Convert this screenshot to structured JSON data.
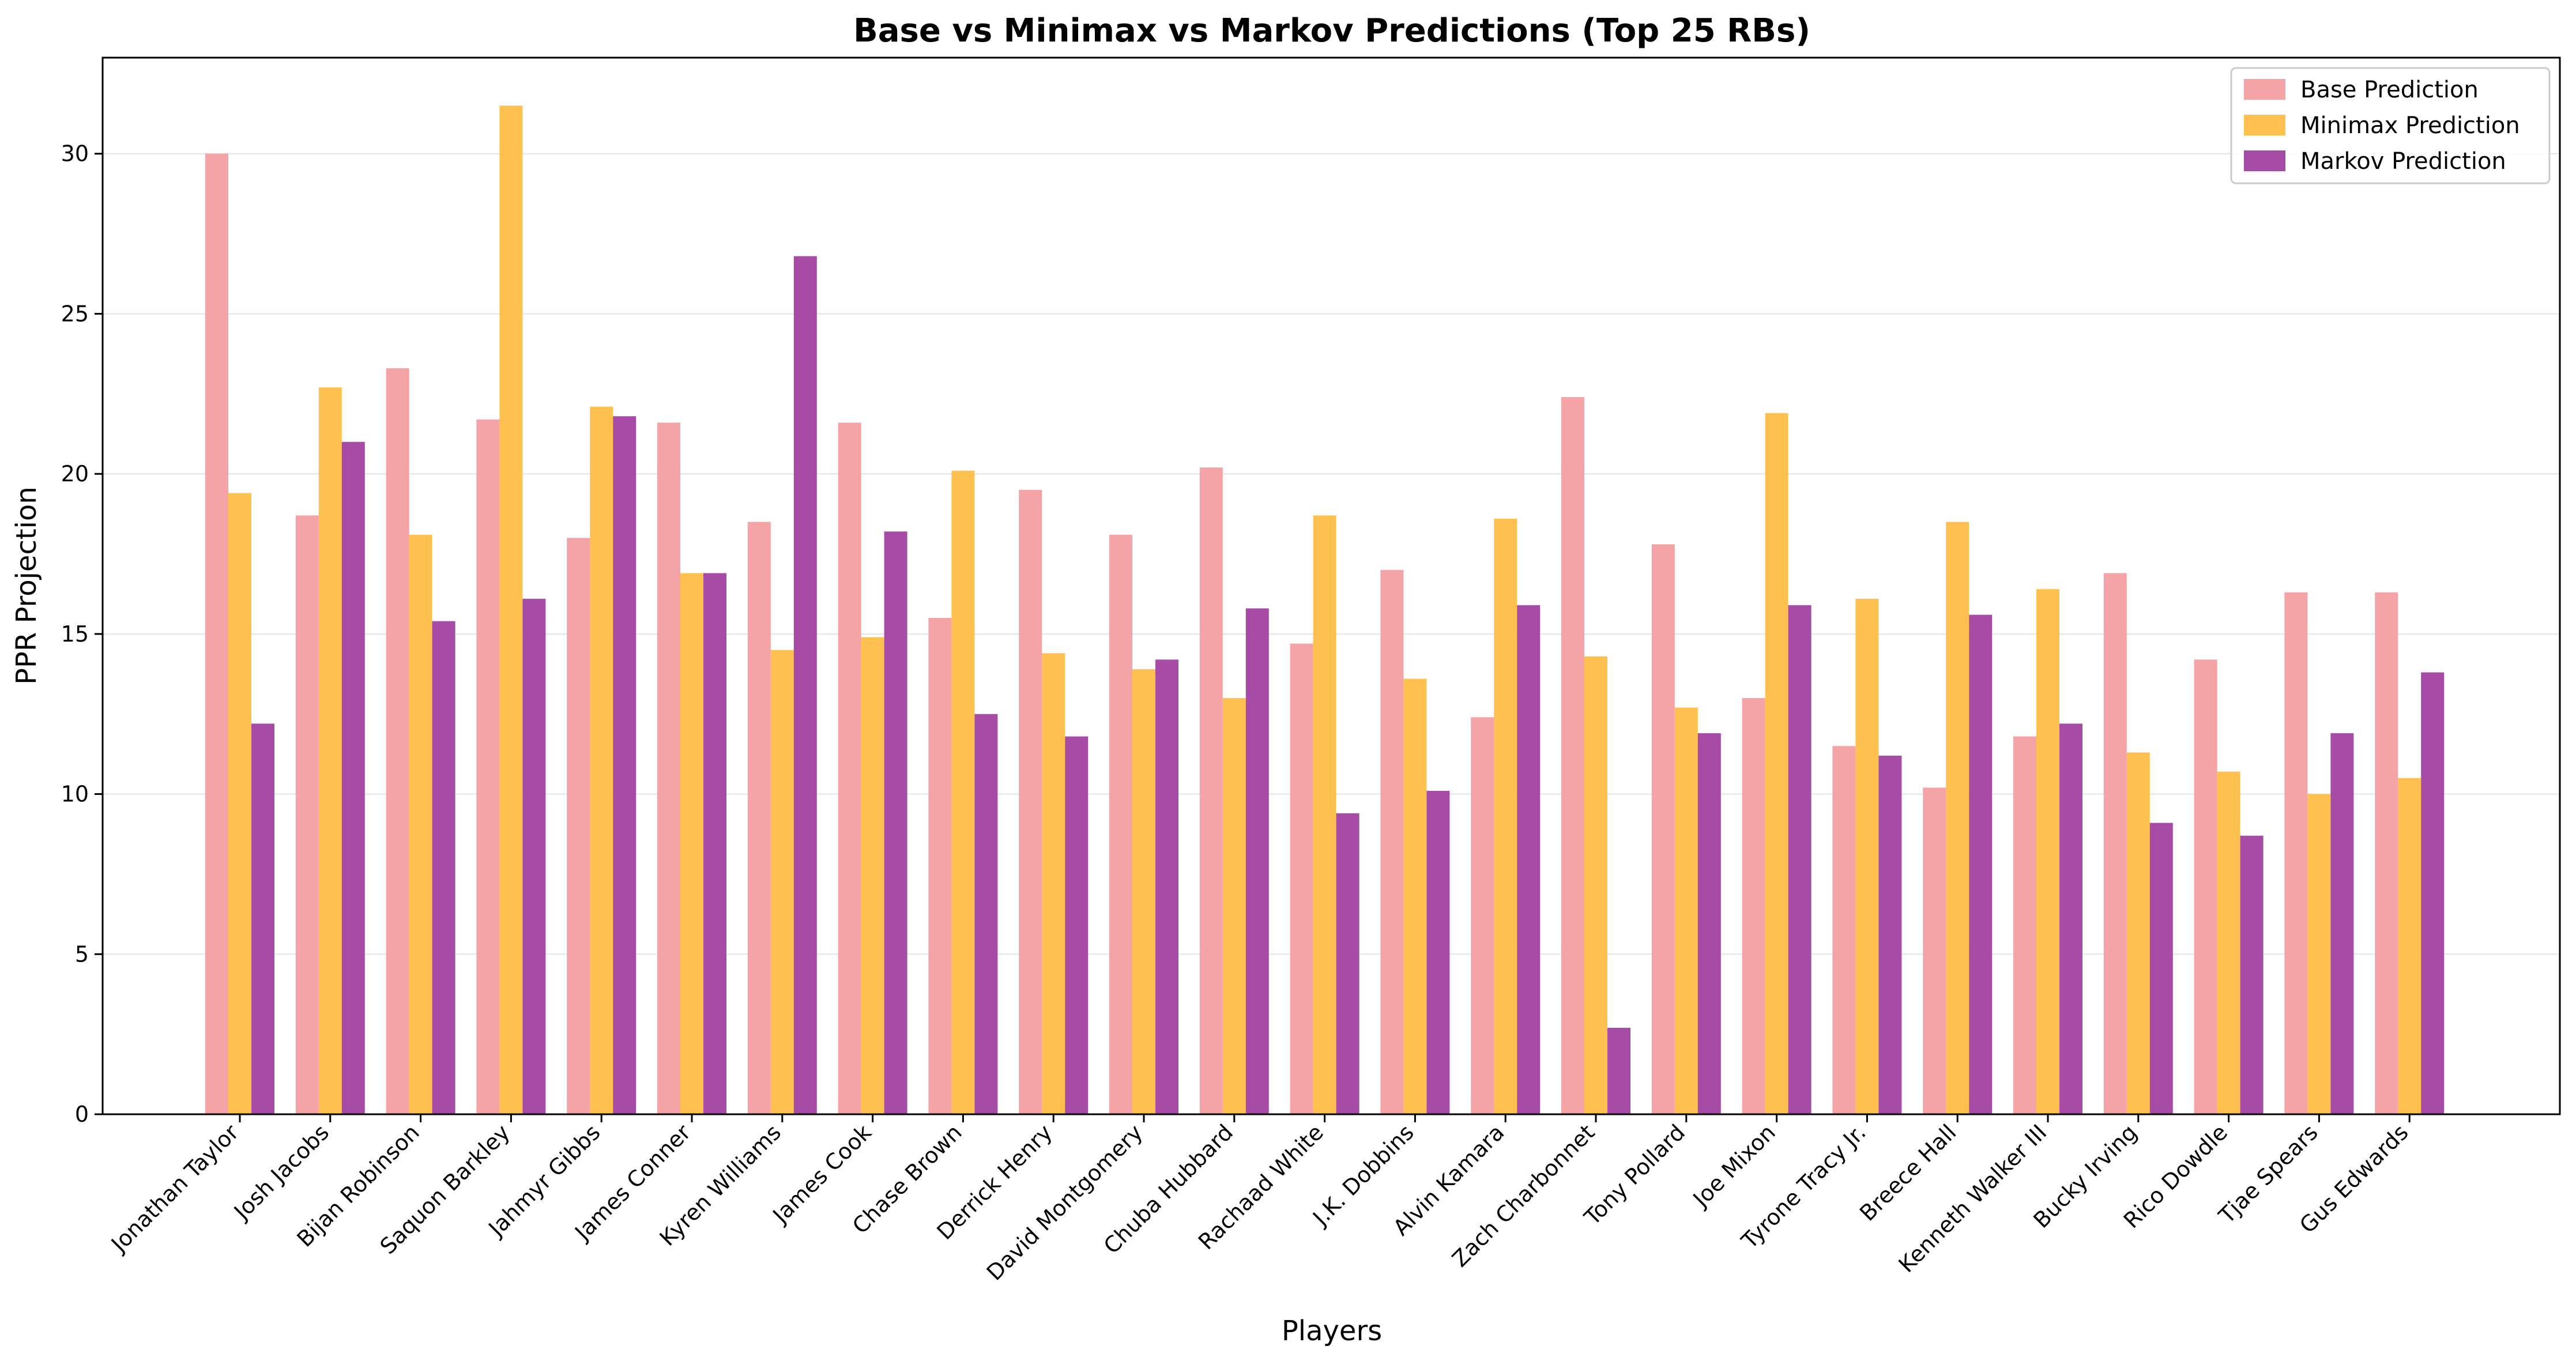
{
  "chart_data": {
    "type": "bar",
    "title": "Base vs Minimax vs Markov Predictions (Top 25 RBs)",
    "xlabel": "Players",
    "ylabel": "PPR Projection",
    "ylim": [
      0,
      33
    ],
    "yticks": [
      "0",
      "5",
      "10",
      "15",
      "20",
      "25",
      "30"
    ],
    "grid": "horizontal",
    "legend_position": "top-right",
    "categories": [
      "Jonathan Taylor",
      "Josh Jacobs",
      "Bijan Robinson",
      "Saquon Barkley",
      "Jahmyr Gibbs",
      "James Conner",
      "Kyren Williams",
      "James Cook",
      "Chase Brown",
      "Derrick Henry",
      "David Montgomery",
      "Chuba Hubbard",
      "Rachaad White",
      "J.K. Dobbins",
      "Alvin Kamara",
      "Zach Charbonnet",
      "Tony Pollard",
      "Joe Mixon",
      "Tyrone Tracy Jr.",
      "Breece Hall",
      "Kenneth Walker III",
      "Bucky Irving",
      "Rico Dowdle",
      "Tjae Spears",
      "Gus Edwards"
    ],
    "series": [
      {
        "name": "Base Prediction",
        "color": "#f4a3a6",
        "values": [
          30.0,
          18.7,
          23.3,
          21.7,
          18.0,
          21.6,
          18.5,
          21.6,
          15.5,
          19.5,
          18.1,
          20.2,
          14.7,
          17.0,
          12.4,
          22.4,
          17.8,
          13.0,
          11.5,
          10.2,
          11.8,
          16.9,
          14.2,
          16.3,
          16.3
        ]
      },
      {
        "name": "Minimax Prediction",
        "color": "#fec04f",
        "values": [
          19.4,
          22.7,
          18.1,
          31.5,
          22.1,
          16.9,
          14.5,
          14.9,
          20.1,
          14.4,
          13.9,
          13.0,
          18.7,
          13.6,
          18.6,
          14.3,
          12.7,
          21.9,
          16.1,
          18.5,
          16.4,
          11.3,
          10.7,
          10.0,
          10.5
        ]
      },
      {
        "name": "Markov Prediction",
        "color": "#a64ca6",
        "values": [
          12.2,
          21.0,
          15.4,
          16.1,
          21.8,
          16.9,
          26.8,
          18.2,
          12.5,
          11.8,
          14.2,
          15.8,
          9.4,
          10.1,
          15.9,
          2.7,
          11.9,
          15.9,
          11.2,
          15.6,
          12.2,
          9.1,
          8.7,
          11.9,
          13.8
        ]
      }
    ]
  }
}
